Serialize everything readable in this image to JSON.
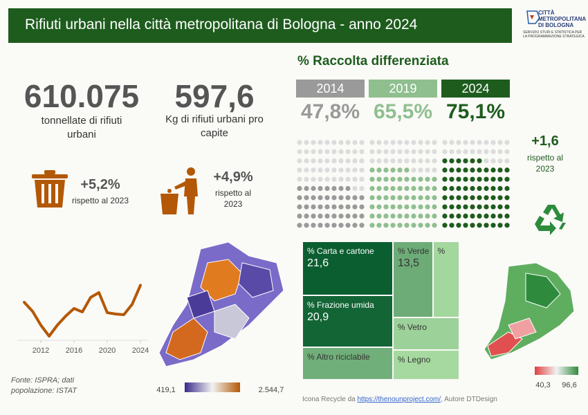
{
  "header": {
    "title": "Rifiuti urbani nella città metropolitana di Bologna - anno 2024",
    "logo_name": "CITTÀ METROPOLITANA DI BOLOGNA",
    "logo_subtitle": "SERVIZIO STUDI E STATISTICA PER LA PROGRAMMAZIONE STRATEGICA"
  },
  "kpis": [
    {
      "value": "610.075",
      "label": "tonnellate di rifiuti urbani",
      "change": "+5,2%",
      "change_label": "rispetto al 2023"
    },
    {
      "value": "597,6",
      "label": "Kg di rifiuti urbani pro capite",
      "change": "+4,9%",
      "change_label": "rispetto al 2023"
    }
  ],
  "separate_collection": {
    "type": "waffle",
    "title": "% Raccolta differenziata",
    "categories": [
      "2014",
      "2019",
      "2024"
    ],
    "values": [
      47.8,
      65.5,
      75.1
    ],
    "value_labels": [
      "47,8%",
      "65,5%",
      "75,1%"
    ],
    "colors": [
      "#9a9a9a",
      "#8fbf8f",
      "#1e5c1e"
    ],
    "change": "+1,6",
    "change_label": "rispetto al 2023"
  },
  "trend_chart": {
    "type": "line",
    "x": [
      2010,
      2011,
      2012,
      2013,
      2014,
      2015,
      2016,
      2017,
      2018,
      2019,
      2020,
      2021,
      2022,
      2023,
      2024
    ],
    "values": [
      573,
      560,
      540,
      524,
      540,
      553,
      564,
      559,
      580,
      587,
      558,
      556,
      555,
      570,
      597.6
    ],
    "color": "#b35806",
    "xlim": [
      2010,
      2024
    ],
    "xticks": [
      2012,
      2016,
      2020,
      2024
    ],
    "ylim": [
      515,
      605
    ]
  },
  "per_capita_map": {
    "legend_ticks": [
      {
        "value": 419.1,
        "label": "419,1"
      },
      {
        "value": 2544.7,
        "label": "2.544,7"
      }
    ]
  },
  "treemap": {
    "type": "treemap",
    "categories": [
      "% Carta e cartone",
      "% Frazione umida",
      "% Altro riciclabile",
      "% Verde",
      "%",
      "% Vetro",
      "% Legno"
    ],
    "values": [
      21.6,
      20.9,
      13.2,
      13.5,
      9.0,
      9.6,
      8.8
    ],
    "value_labels": [
      "21,6",
      "20,9",
      null,
      "13,5",
      null,
      null,
      null
    ]
  },
  "collection_map": {
    "legend_ticks": [
      {
        "value": 40.3,
        "label": "40,3"
      },
      {
        "value": 96.6,
        "label": "96,6"
      }
    ]
  },
  "footer": {
    "source": "Fonte: ISPRA; dati popolazione: ISTAT",
    "credit_prefix": "Icona Recycle da ",
    "credit_link": "https://thenounproject.com/",
    "credit_suffix": ", Autore DTDesign"
  }
}
